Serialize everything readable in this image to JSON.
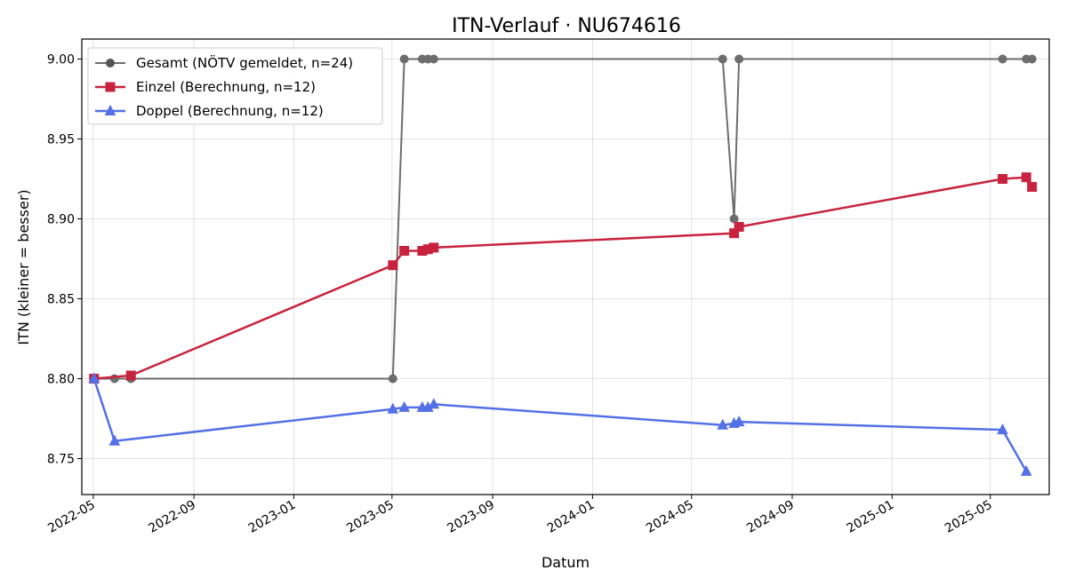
{
  "chart_data": {
    "type": "line",
    "title": "ITN-Verlauf · NU674616",
    "xlabel": "Datum",
    "ylabel": "ITN  (kleiner = besser)",
    "xlim": [
      "2022-04-17",
      "2025-07-12"
    ],
    "ylim": [
      8.7275,
      9.0125
    ],
    "grid": true,
    "legend_position": "top-left",
    "x_ticks": [
      "2022-05",
      "2022-09",
      "2023-01",
      "2023-05",
      "2023-09",
      "2024-01",
      "2024-05",
      "2024-09",
      "2025-01",
      "2025-05"
    ],
    "x_tick_dates": [
      "2022-05-01",
      "2022-09-01",
      "2023-01-01",
      "2023-05-01",
      "2023-09-01",
      "2024-01-01",
      "2024-05-01",
      "2024-09-01",
      "2025-01-01",
      "2025-05-01"
    ],
    "y_ticks": [
      "8.75",
      "8.80",
      "8.85",
      "8.90",
      "8.95",
      "9.00"
    ],
    "y_tick_values": [
      8.75,
      8.8,
      8.85,
      8.9,
      8.95,
      9.0
    ],
    "series": [
      {
        "name": "Gesamt (NÖTV gemeldet, n=24)",
        "color": "#555555",
        "marker": "circle",
        "points": [
          {
            "x": "2022-05-02",
            "y": 8.8
          },
          {
            "x": "2022-05-27",
            "y": 8.8
          },
          {
            "x": "2022-06-16",
            "y": 8.8
          },
          {
            "x": "2023-05-02",
            "y": 8.8
          },
          {
            "x": "2023-05-16",
            "y": 9.0
          },
          {
            "x": "2023-06-07",
            "y": 9.0
          },
          {
            "x": "2023-06-14",
            "y": 9.0
          },
          {
            "x": "2023-06-21",
            "y": 9.0
          },
          {
            "x": "2024-06-08",
            "y": 9.0
          },
          {
            "x": "2024-06-22",
            "y": 8.9
          },
          {
            "x": "2024-06-28",
            "y": 9.0
          },
          {
            "x": "2025-05-16",
            "y": 9.0
          },
          {
            "x": "2025-06-14",
            "y": 9.0
          },
          {
            "x": "2025-06-21",
            "y": 9.0
          }
        ]
      },
      {
        "name": "Einzel (Berechnung, n=12)",
        "color": "#c8233e",
        "marker": "square",
        "points": [
          {
            "x": "2022-05-02",
            "y": 8.8
          },
          {
            "x": "2022-06-16",
            "y": 8.802
          },
          {
            "x": "2023-05-02",
            "y": 8.871
          },
          {
            "x": "2023-05-16",
            "y": 8.88
          },
          {
            "x": "2023-06-07",
            "y": 8.88
          },
          {
            "x": "2023-06-14",
            "y": 8.881
          },
          {
            "x": "2023-06-21",
            "y": 8.882
          },
          {
            "x": "2024-06-22",
            "y": 8.891
          },
          {
            "x": "2024-06-28",
            "y": 8.895
          },
          {
            "x": "2025-05-16",
            "y": 8.925
          },
          {
            "x": "2025-06-14",
            "y": 8.926
          },
          {
            "x": "2025-06-21",
            "y": 8.92
          }
        ]
      },
      {
        "name": "Doppel (Berechnung, n=12)",
        "color": "#5470e6",
        "marker": "triangle",
        "points": [
          {
            "x": "2022-05-02",
            "y": 8.8
          },
          {
            "x": "2022-05-27",
            "y": 8.761
          },
          {
            "x": "2023-05-02",
            "y": 8.781
          },
          {
            "x": "2023-05-16",
            "y": 8.782
          },
          {
            "x": "2023-06-07",
            "y": 8.782
          },
          {
            "x": "2023-06-14",
            "y": 8.782
          },
          {
            "x": "2023-06-21",
            "y": 8.784
          },
          {
            "x": "2024-06-08",
            "y": 8.771
          },
          {
            "x": "2024-06-22",
            "y": 8.772
          },
          {
            "x": "2024-06-28",
            "y": 8.773
          },
          {
            "x": "2025-05-16",
            "y": 8.768
          },
          {
            "x": "2025-06-14",
            "y": 8.742
          }
        ]
      }
    ]
  }
}
